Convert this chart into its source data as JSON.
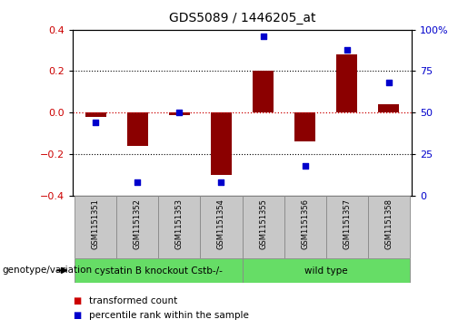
{
  "title": "GDS5089 / 1446205_at",
  "samples": [
    "GSM1151351",
    "GSM1151352",
    "GSM1151353",
    "GSM1151354",
    "GSM1151355",
    "GSM1151356",
    "GSM1151357",
    "GSM1151358"
  ],
  "bar_values": [
    -0.02,
    -0.16,
    -0.01,
    -0.3,
    0.2,
    -0.14,
    0.28,
    0.04
  ],
  "dot_values": [
    44,
    8,
    50,
    8,
    96,
    18,
    88,
    68
  ],
  "bar_color": "#8B0000",
  "dot_color": "#0000CC",
  "groups": [
    {
      "label": "cystatin B knockout Cstb-/-",
      "start": 0,
      "end": 4,
      "color": "#66DD66"
    },
    {
      "label": "wild type",
      "start": 4,
      "end": 8,
      "color": "#66DD66"
    }
  ],
  "ylim_left": [
    -0.4,
    0.4
  ],
  "ylim_right": [
    0,
    100
  ],
  "yticks_left": [
    -0.4,
    -0.2,
    0.0,
    0.2,
    0.4
  ],
  "yticks_right": [
    0,
    25,
    50,
    75,
    100
  ],
  "ytick_labels_right": [
    "0",
    "25",
    "50",
    "75",
    "100%"
  ],
  "hline_y": 0.0,
  "dotted_lines": [
    -0.2,
    0.2
  ],
  "legend_items": [
    {
      "label": "transformed count",
      "color": "#CC0000"
    },
    {
      "label": "percentile rank within the sample",
      "color": "#0000CC"
    }
  ],
  "genotype_label": "genotype/variation",
  "bg_color": "#FFFFFF",
  "plot_bg_color": "#FFFFFF",
  "tick_label_color_left": "#CC0000",
  "tick_label_color_right": "#0000CC",
  "sample_box_color": "#C8C8C8",
  "sample_box_edge": "#888888"
}
